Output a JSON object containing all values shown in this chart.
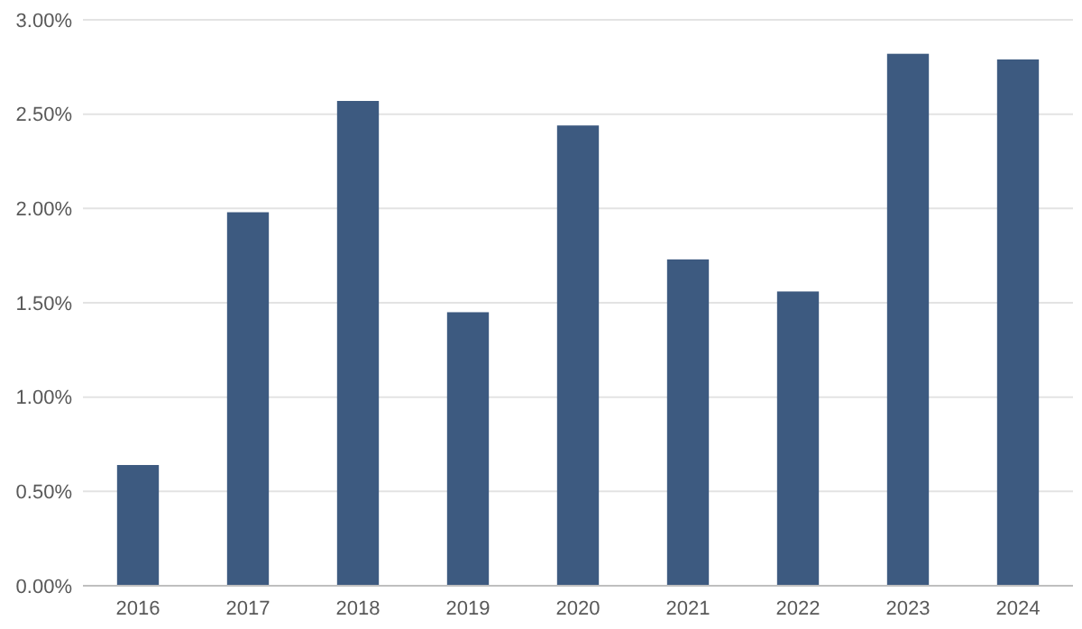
{
  "chart_data": {
    "type": "bar",
    "categories": [
      "2016",
      "2017",
      "2018",
      "2019",
      "2020",
      "2021",
      "2022",
      "2023",
      "2024"
    ],
    "values": [
      0.64,
      1.98,
      2.57,
      1.45,
      2.44,
      1.73,
      1.56,
      2.82,
      2.79
    ],
    "color": "#3d5a80",
    "ylim": [
      0,
      3
    ],
    "yticks": [
      {
        "value": 0,
        "label": "0.00%"
      },
      {
        "value": 0.5,
        "label": "0.50%"
      },
      {
        "value": 1,
        "label": "1.00%"
      },
      {
        "value": 1.5,
        "label": "1.50%"
      },
      {
        "value": 2,
        "label": "2.00%"
      },
      {
        "value": 2.5,
        "label": "2.50%"
      },
      {
        "value": 3,
        "label": "3.00%"
      }
    ],
    "grid": "y"
  }
}
